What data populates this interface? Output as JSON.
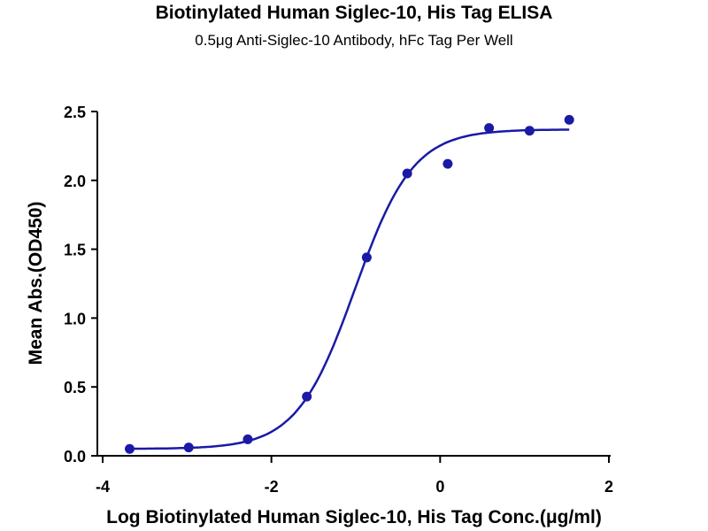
{
  "chart_data": {
    "type": "scatter",
    "title": "Biotinylated Human Siglec-10, His Tag ELISA",
    "subtitle": "0.5μg Anti-Siglec-10 Antibody, hFc Tag Per Well",
    "xlabel": "Log Biotinylated Human Siglec-10, His Tag Conc.(μg/ml)",
    "ylabel": "Mean Abs.(OD450)",
    "xlim": [
      -4,
      2
    ],
    "ylim": [
      0,
      2.5
    ],
    "xticks": [
      -4,
      -2,
      0,
      2
    ],
    "xtick_labels": [
      "-4",
      "-2",
      "0",
      "2"
    ],
    "yticks": [
      0,
      0.5,
      1,
      1.5,
      2,
      2.5
    ],
    "ytick_labels": [
      "0.0",
      "0.5",
      "1.0",
      "1.5",
      "2.0",
      "2.5"
    ],
    "grid": false,
    "color": "#1a1aa6",
    "series": [
      {
        "name": "Mean Abs.",
        "x": [
          -3.68,
          -2.98,
          -2.28,
          -1.58,
          -0.87,
          -0.39,
          0.09,
          0.58,
          1.06,
          1.53
        ],
        "y": [
          0.05,
          0.06,
          0.12,
          0.43,
          1.44,
          2.05,
          2.12,
          2.38,
          2.36,
          2.44
        ]
      }
    ],
    "fit": {
      "model": "4PL",
      "bottom": 0.05,
      "top": 2.37,
      "logEC50": -1.01,
      "hill": 1.26,
      "x_range": [
        -3.68,
        1.53
      ]
    }
  }
}
